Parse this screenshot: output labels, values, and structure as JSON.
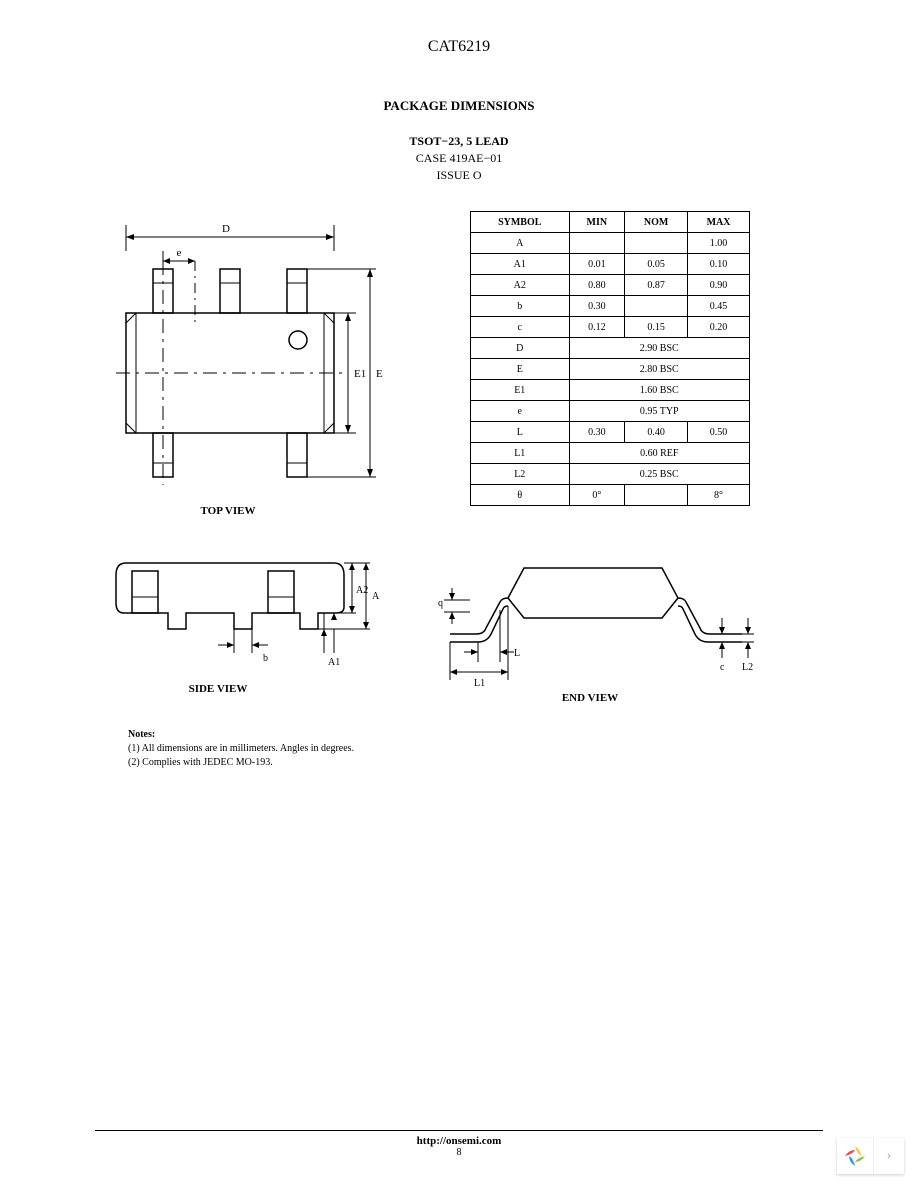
{
  "part_number": "CAT6219",
  "section_title": "PACKAGE DIMENSIONS",
  "package_type": "TSOT−23, 5 LEAD",
  "case_number": "CASE 419AE−01",
  "issue": "ISSUE O",
  "table": {
    "headers": [
      "SYMBOL",
      "MIN",
      "NOM",
      "MAX"
    ],
    "rows": [
      {
        "sym": "A",
        "min": "",
        "nom": "",
        "max": "1.00"
      },
      {
        "sym": "A1",
        "min": "0.01",
        "nom": "0.05",
        "max": "0.10"
      },
      {
        "sym": "A2",
        "min": "0.80",
        "nom": "0.87",
        "max": "0.90"
      },
      {
        "sym": "b",
        "min": "0.30",
        "nom": "",
        "max": "0.45"
      },
      {
        "sym": "c",
        "min": "0.12",
        "nom": "0.15",
        "max": "0.20"
      },
      {
        "sym": "D",
        "span": "2.90 BSC"
      },
      {
        "sym": "E",
        "span": "2.80 BSC"
      },
      {
        "sym": "E1",
        "span": "1.60 BSC"
      },
      {
        "sym": "e",
        "span": "0.95 TYP"
      },
      {
        "sym": "L",
        "min": "0.30",
        "nom": "0.40",
        "max": "0.50"
      },
      {
        "sym": "L1",
        "span": "0.60 REF"
      },
      {
        "sym": "L2",
        "span": "0.25 BSC"
      },
      {
        "sym": "θ",
        "min": "0°",
        "nom": "",
        "max": "8°"
      }
    ]
  },
  "views": {
    "top": "TOP VIEW",
    "side": "SIDE VIEW",
    "end": "END VIEW"
  },
  "dim_labels": {
    "D": "D",
    "e": "e",
    "E1": "E1",
    "E": "E",
    "A": "A",
    "A1": "A1",
    "A2": "A2",
    "b": "b",
    "q": "q",
    "L": "L",
    "L1": "L1",
    "L2": "L2",
    "c": "c"
  },
  "notes": {
    "title": "Notes:",
    "items": [
      "(1)  All dimensions are in millimeters. Angles in degrees.",
      "(2)  Complies with JEDEC MO-193."
    ]
  },
  "footer": {
    "url": "http://onsemi.com",
    "page": "8"
  },
  "colors": {
    "stroke": "#000000",
    "bg": "#ffffff",
    "logo": {
      "p1": "#f9c642",
      "p2": "#e84c3d",
      "p3": "#8bc34a",
      "p4": "#3498db"
    }
  }
}
